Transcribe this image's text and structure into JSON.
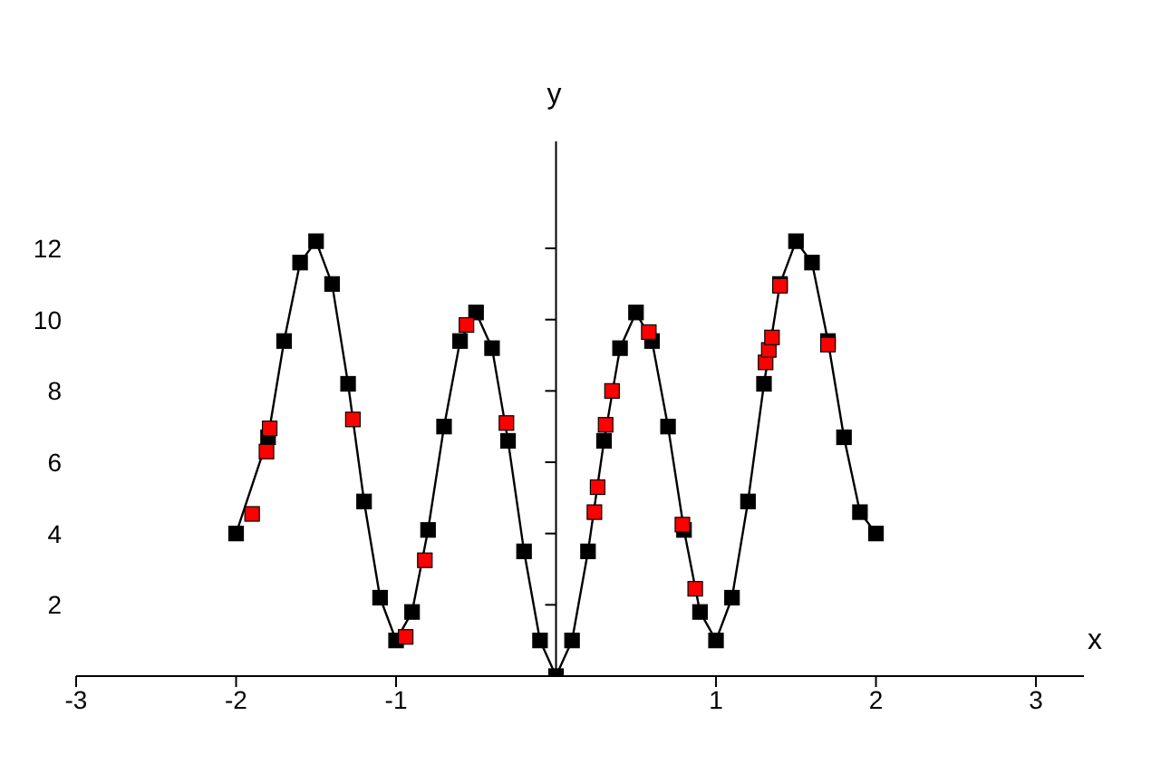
{
  "chart_data": {
    "type": "line",
    "xlabel": "x",
    "ylabel": "y",
    "xlim": [
      -3,
      3.3
    ],
    "ylim": [
      0,
      15
    ],
    "xticks": [
      -3,
      -2,
      -1,
      1,
      2,
      3
    ],
    "yticks": [
      2,
      4,
      6,
      8,
      10,
      12
    ],
    "marker": "square",
    "line_style": "solid",
    "series": [
      {
        "color": "#000000",
        "x": [
          -2,
          -1.8,
          -1.7,
          -1.6,
          -1.5,
          -1.4,
          -1.3,
          -1.2,
          -1.1,
          -1,
          -0.9,
          -0.8,
          -0.7,
          -0.6,
          -0.5,
          -0.4,
          -0.3,
          -0.2,
          -0.1,
          0,
          0.1,
          0.2,
          0.3,
          0.4,
          0.5,
          0.6,
          0.7,
          0.8,
          0.9,
          1,
          1.1,
          1.2,
          1.3,
          1.4,
          1.5,
          1.6,
          1.7,
          1.8,
          1.9,
          2
        ],
        "values": [
          4,
          6.7,
          9.4,
          11.6,
          12.2,
          11,
          8.2,
          4.9,
          2.2,
          1,
          1.8,
          4.1,
          7,
          9.4,
          10.2,
          9.2,
          6.6,
          3.5,
          1,
          0,
          1,
          3.5,
          6.6,
          9.2,
          10.2,
          9.4,
          7,
          4.1,
          1.8,
          1,
          2.2,
          4.9,
          8.2,
          11,
          12.2,
          11.6,
          9.4,
          6.7,
          4.6,
          4
        ]
      },
      {
        "type": "scatter",
        "color": "#ff0000",
        "x": [
          -1.9,
          -1.81,
          -1.79,
          -1.27,
          -0.94,
          -0.82,
          -0.56,
          -0.31,
          0.24,
          0.26,
          0.31,
          0.35,
          0.58,
          0.79,
          0.87,
          1.31,
          1.33,
          1.35,
          1.4,
          1.7
        ],
        "values": [
          4.55,
          6.3,
          6.95,
          7.2,
          1.1,
          3.25,
          9.85,
          7.1,
          4.6,
          5.3,
          7.05,
          8,
          9.65,
          4.25,
          2.45,
          8.8,
          9.15,
          9.5,
          10.95,
          9.3
        ]
      }
    ]
  }
}
